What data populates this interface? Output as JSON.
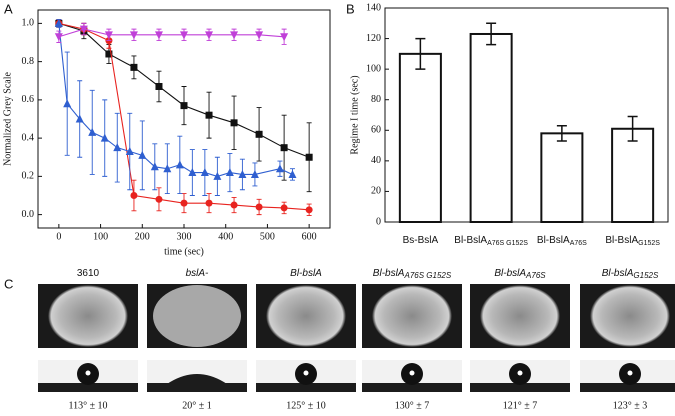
{
  "chart_data": [
    {
      "type": "line",
      "panel_label": "A",
      "xlabel": "time (sec)",
      "ylabel": "Normalized Grey Scale",
      "xlim": [
        -50,
        650
      ],
      "xticks": [
        0,
        100,
        200,
        300,
        400,
        500,
        600
      ],
      "ylim": [
        -0.07,
        1.07
      ],
      "yticks": [
        {
          "value": 0,
          "label": "0.0"
        },
        {
          "value": 0.2,
          "label": "0.2"
        },
        {
          "value": 0.4,
          "label": "0.4"
        },
        {
          "value": 0.6,
          "label": "0.6"
        },
        {
          "value": 0.8,
          "label": "0.8"
        },
        {
          "value": 1,
          "label": "1.0"
        }
      ],
      "series": [
        {
          "color": "#111111",
          "marker": "square",
          "x": [
            0,
            60,
            120,
            180,
            240,
            300,
            360,
            420,
            480,
            540,
            600
          ],
          "values": [
            1.0,
            0.96,
            0.84,
            0.77,
            0.67,
            0.57,
            0.52,
            0.48,
            0.42,
            0.35,
            0.3
          ],
          "errors": [
            0.02,
            0.04,
            0.05,
            0.06,
            0.08,
            0.1,
            0.12,
            0.14,
            0.14,
            0.17,
            0.18
          ]
        },
        {
          "color": "#e8231f",
          "marker": "circle",
          "x": [
            0,
            60,
            120,
            180,
            240,
            300,
            360,
            420,
            480,
            540,
            600
          ],
          "values": [
            1.0,
            0.97,
            0.91,
            0.1,
            0.08,
            0.06,
            0.06,
            0.05,
            0.04,
            0.035,
            0.025
          ],
          "errors": [
            0.02,
            0.03,
            0.04,
            0.08,
            0.06,
            0.05,
            0.05,
            0.04,
            0.04,
            0.03,
            0.03
          ]
        },
        {
          "color": "#2f5fd0",
          "marker": "triangle-up",
          "x": [
            0,
            20,
            50,
            80,
            110,
            140,
            170,
            200,
            230,
            260,
            290,
            320,
            350,
            380,
            410,
            440,
            470,
            530,
            560
          ],
          "values": [
            1.0,
            0.58,
            0.5,
            0.43,
            0.4,
            0.35,
            0.33,
            0.31,
            0.25,
            0.24,
            0.26,
            0.22,
            0.22,
            0.2,
            0.22,
            0.21,
            0.21,
            0.24,
            0.21
          ],
          "errors": [
            0.02,
            0.27,
            0.2,
            0.22,
            0.2,
            0.18,
            0.2,
            0.18,
            0.12,
            0.13,
            0.15,
            0.12,
            0.12,
            0.1,
            0.1,
            0.08,
            0.06,
            0.04,
            0.03
          ]
        },
        {
          "color": "#c040d8",
          "marker": "triangle-down",
          "x": [
            0,
            60,
            120,
            180,
            240,
            300,
            360,
            420,
            480,
            540
          ],
          "values": [
            0.93,
            0.97,
            0.94,
            0.94,
            0.94,
            0.94,
            0.94,
            0.94,
            0.94,
            0.93
          ],
          "errors": [
            0.03,
            0.03,
            0.03,
            0.03,
            0.03,
            0.03,
            0.03,
            0.03,
            0.03,
            0.04
          ]
        }
      ]
    },
    {
      "type": "bar",
      "panel_label": "B",
      "ylabel": "Regime I time (sec)",
      "categories": [
        "Bs-BslA",
        "Bl-BslA",
        "Bl-BslA",
        "Bl-BslA"
      ],
      "category_subscripts": [
        null,
        "A76S G152S",
        "A76S",
        "G152S"
      ],
      "values": [
        110,
        123,
        58,
        61
      ],
      "errors": [
        10,
        7,
        5,
        8
      ],
      "color": "#ffffff",
      "ylim": [
        0,
        140
      ],
      "yticks": [
        0,
        20,
        40,
        60,
        80,
        100,
        120,
        140
      ]
    }
  ],
  "panel_c": {
    "label": "C",
    "samples": [
      {
        "name": "3610",
        "angle": "113° ± 10",
        "italic": false
      },
      {
        "name": "bslA-",
        "angle": "20° ± 1",
        "italic": true
      },
      {
        "name": "Bl-bslA",
        "angle": "125° ± 10",
        "italic": true
      },
      {
        "name": "Bl-bslA",
        "subscript": "A76S G152S",
        "angle": "130° ± 7",
        "italic": true
      },
      {
        "name": "Bl-bslA",
        "subscript": "A76S",
        "angle": "121° ± 7",
        "italic": true
      },
      {
        "name": "Bl-bslA",
        "subscript": "G152S",
        "angle": "123° ± 3",
        "italic": true
      }
    ]
  }
}
